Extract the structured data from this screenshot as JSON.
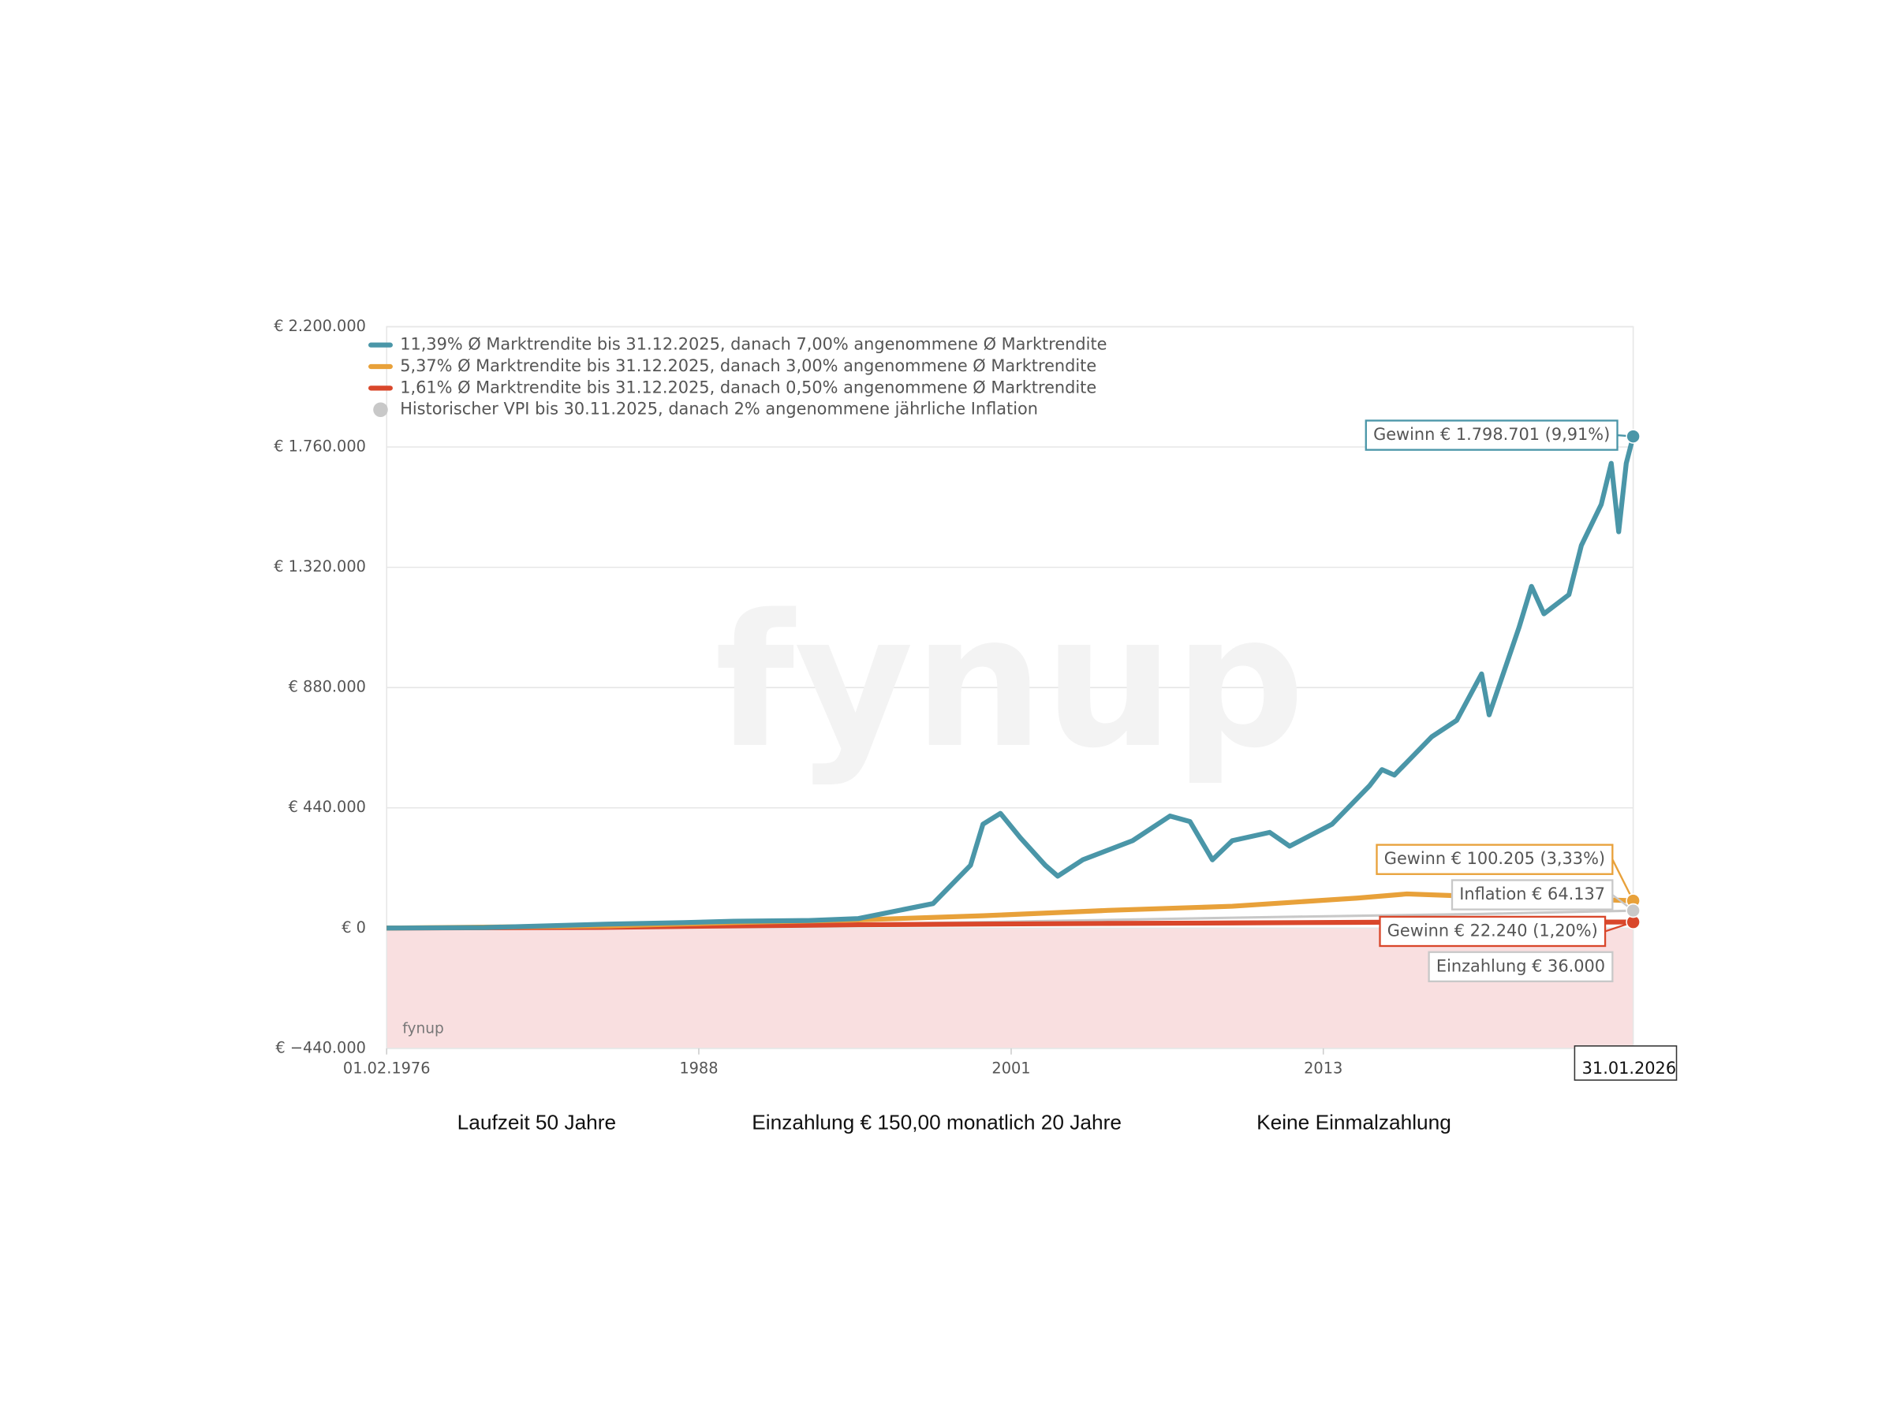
{
  "chart_data": {
    "type": "line",
    "xlim": [
      1976.08,
      2026.08
    ],
    "xticks": [
      {
        "value": 1976.08,
        "label": "01.02.1976"
      },
      {
        "value": 1988.6,
        "label": "1988"
      },
      {
        "value": 2001.13,
        "label": "2001"
      },
      {
        "value": 2013.65,
        "label": "2013"
      },
      {
        "value": 2026.08,
        "label": "31.01.2026"
      }
    ],
    "ylim": [
      -440000,
      2200000
    ],
    "yticks": [
      {
        "value": -440000,
        "label": "€ −440.000"
      },
      {
        "value": 0,
        "label": "€ 0"
      },
      {
        "value": 440000,
        "label": "€ 440.000"
      },
      {
        "value": 880000,
        "label": "€ 880.000"
      },
      {
        "value": 1320000,
        "label": "€ 1.320.000"
      },
      {
        "value": 1760000,
        "label": "€ 1.760.000"
      },
      {
        "value": 2200000,
        "label": "€ 2.200.000"
      }
    ],
    "grid": true,
    "negative_fill": "#f9dfe0",
    "series": [
      {
        "name": "11,39% Ø Marktrendite bis 31.12.2025, danach 7,00% angenommene Ø Marktrendite",
        "color": "#4a96a8",
        "marker": "line",
        "x": [
          1976.08,
          1980,
          1985,
          1988,
          1990,
          1993,
          1995,
          1998,
          1999.5,
          2000,
          2000.7,
          2001.5,
          2002.5,
          2003,
          2004,
          2006,
          2007.5,
          2008.3,
          2009.2,
          2010,
          2011.5,
          2012.3,
          2014,
          2015.5,
          2016,
          2016.5,
          2018,
          2019,
          2020,
          2020.3,
          2021.5,
          2022,
          2022.5,
          2023.5,
          2024,
          2024.8,
          2025.2,
          2025.5,
          2025.8,
          2026.08
        ],
        "values": [
          0,
          2000,
          15000,
          20000,
          25000,
          28000,
          35000,
          90000,
          230000,
          380000,
          420000,
          330000,
          230000,
          190000,
          250000,
          320000,
          410000,
          390000,
          250000,
          320000,
          350000,
          300000,
          380000,
          520000,
          580000,
          560000,
          700000,
          760000,
          930000,
          780000,
          1100000,
          1250000,
          1150000,
          1220000,
          1400000,
          1550000,
          1700000,
          1450000,
          1700000,
          1798701
        ],
        "end_label": "Gewinn € 1.798.701 (9,91%)"
      },
      {
        "name": "5,37% Ø Marktrendite bis 31.12.2025, danach 3,00% angenommene Ø Marktrendite",
        "color": "#e8a13a",
        "marker": "line",
        "x": [
          1976.08,
          1985,
          1990,
          1995,
          2000,
          2005,
          2010,
          2015,
          2017,
          2020,
          2023,
          2026.08
        ],
        "values": [
          0,
          8000,
          20000,
          30000,
          45000,
          65000,
          80000,
          110000,
          125000,
          115000,
          110000,
          100205
        ],
        "end_label": "Gewinn € 100.205 (3,33%)"
      },
      {
        "name": "1,61% Ø Marktrendite bis 31.12.2025, danach 0,50% angenommene Ø Marktrendite",
        "color": "#d9472b",
        "marker": "line",
        "x": [
          1976.08,
          1985,
          1990,
          1995,
          2000,
          2005,
          2010,
          2015,
          2017,
          2020,
          2023,
          2026.08
        ],
        "values": [
          0,
          3000,
          8000,
          12000,
          15000,
          17000,
          19000,
          21000,
          22000,
          22000,
          22000,
          22240
        ],
        "end_label": "Gewinn € 22.240 (1,20%)"
      },
      {
        "name": "Historischer VPI bis 30.11.2025, danach 2% angenommene jährliche Inflation",
        "color": "#c8c8c8",
        "marker": "circle",
        "x": [
          1976.08,
          1985,
          1990,
          1995,
          2000,
          2005,
          2010,
          2015,
          2020,
          2026.08
        ],
        "values": [
          0,
          4000,
          9000,
          15000,
          22000,
          30000,
          38000,
          45000,
          52000,
          64137
        ],
        "end_label": "Inflation € 64.137"
      }
    ],
    "annotations": [
      "Einzahlung € 36.000"
    ],
    "watermark": "fynup",
    "credit": "fynup",
    "footer": [
      "Laufzeit 50 Jahre",
      "Einzahlung € 150,00 monatlich 20 Jahre",
      "Keine Einmalzahlung"
    ]
  }
}
